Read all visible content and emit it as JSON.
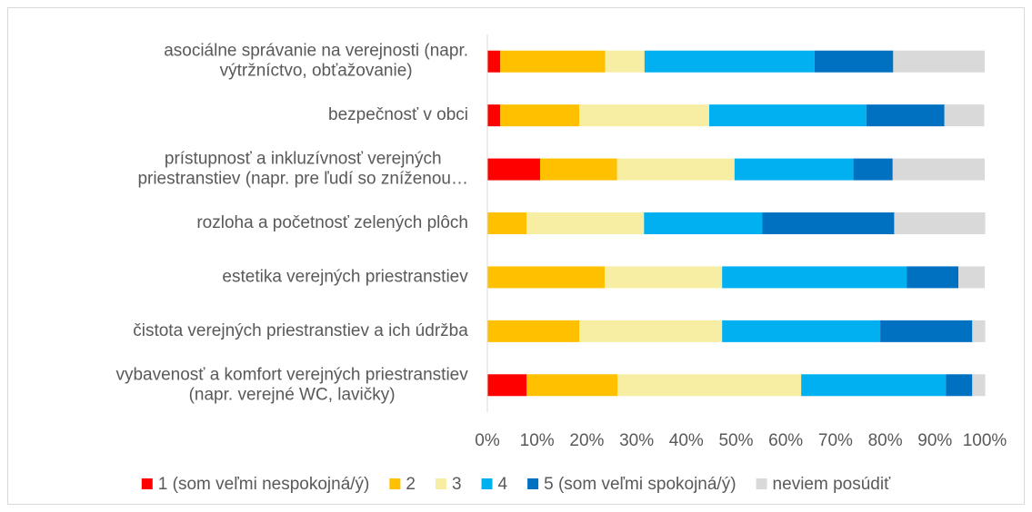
{
  "chart_data": {
    "type": "stacked_barh",
    "categories": [
      "asociálne správanie na verejnosti (napr.\nvýtržníctvo, obťažovanie)",
      "bezpečnosť v obci",
      "prístupnosť a inkluzívnosť verejných\npriestranstiev (napr. pre ľudí so zníženou…",
      "rozloha a početnosť zelených plôch",
      "estetika verejných priestranstiev",
      "čistota verejných priestranstiev a ich údržba",
      "vybavenosť a komfort verejných priestranstiev\n(napr. verejné WC, lavičky)"
    ],
    "series": [
      {
        "name": "1 (som veľmi nespokojná/ý)",
        "color": "#ff0000",
        "values": [
          2.6,
          2.6,
          10.6,
          0,
          0,
          0,
          7.9
        ]
      },
      {
        "name": "2",
        "color": "#ffc000",
        "values": [
          21.1,
          15.9,
          15.5,
          7.9,
          23.6,
          18.5,
          18.3
        ]
      },
      {
        "name": "3",
        "color": "#f7eea3",
        "values": [
          7.9,
          26.1,
          23.6,
          23.6,
          23.6,
          28.7,
          36.9
        ]
      },
      {
        "name": "4",
        "color": "#00b0f0",
        "values": [
          34.2,
          31.6,
          23.9,
          23.8,
          37.1,
          31.8,
          29.1
        ]
      },
      {
        "name": "5 (som veľmi spokojná/ý)",
        "color": "#0070c0",
        "values": [
          15.8,
          15.7,
          7.9,
          26.5,
          10.4,
          18.5,
          5.3
        ]
      },
      {
        "name": "neviem posúdiť",
        "color": "#d9d9d9",
        "values": [
          18.4,
          8.0,
          18.5,
          18.3,
          5.3,
          2.6,
          2.6
        ]
      }
    ],
    "xlim": [
      0,
      100
    ],
    "xticks": [
      {
        "value": 0,
        "label": "0%"
      },
      {
        "value": 10,
        "label": "10%"
      },
      {
        "value": 20,
        "label": "20%"
      },
      {
        "value": 30,
        "label": "30%"
      },
      {
        "value": 40,
        "label": "40%"
      },
      {
        "value": 50,
        "label": "50%"
      },
      {
        "value": 60,
        "label": "60%"
      },
      {
        "value": 70,
        "label": "70%"
      },
      {
        "value": 80,
        "label": "80%"
      },
      {
        "value": 90,
        "label": "90%"
      },
      {
        "value": 100,
        "label": "100%"
      }
    ],
    "legend": "bottom"
  }
}
